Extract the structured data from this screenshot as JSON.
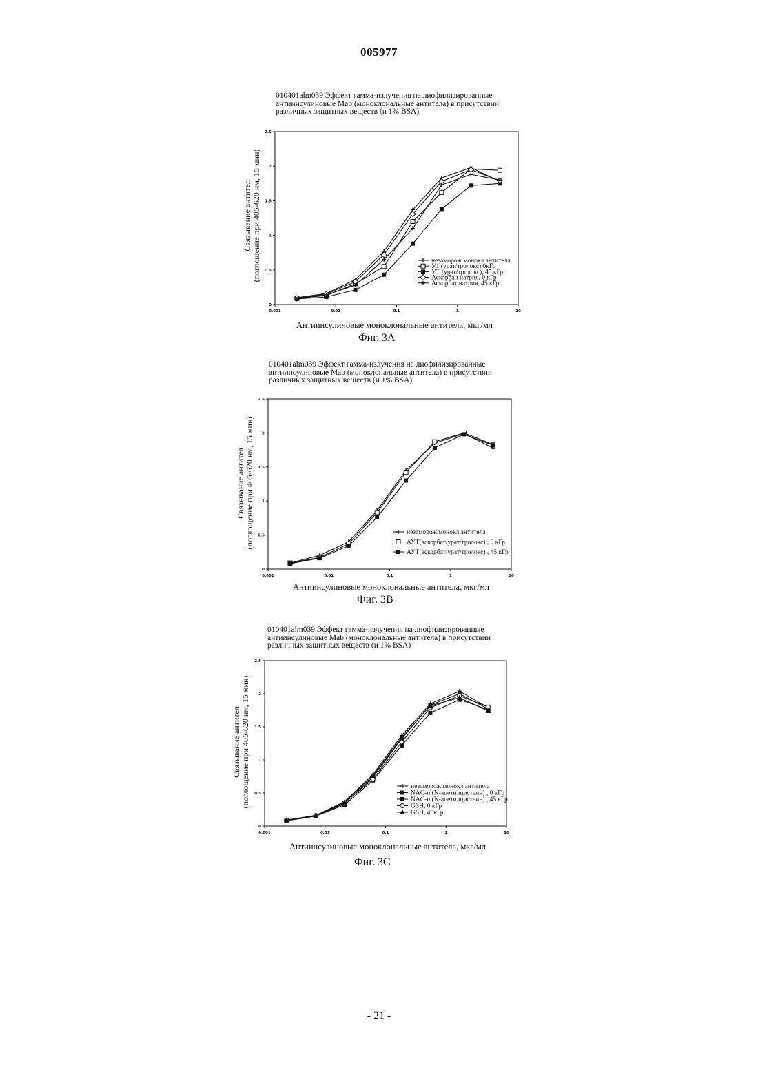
{
  "page": {
    "header_number": "005977",
    "footer_number": "- 21 -"
  },
  "chart_data": [
    {
      "type": "line",
      "title": "010401alm039 Эффект гамма-излучения на лиофилизированные\nантиинсулиновые Mab (моноклональные антитела) в присутствии\nразличных защитных веществ (и 1% BSA)",
      "xlabel": "Антиинсулиновые моноклональные антитела, мкг/мл",
      "ylabel": "Связывание антител\n(поглощение при 405-620 нм, 15 мин)",
      "caption": "Фиг. 3А",
      "xscale": "log",
      "xlim": [
        0.001,
        10
      ],
      "ylim": [
        0,
        2.5
      ],
      "x_ticks": [
        "0.001",
        "0.01",
        "0.1",
        "1",
        "10"
      ],
      "y_ticks": [
        "0",
        "0.5",
        "1",
        "1.5",
        "2",
        "2.5"
      ],
      "legend_position": "lower-right",
      "x": [
        0.0023,
        0.007,
        0.021,
        0.062,
        0.185,
        0.55,
        1.67,
        5.0
      ],
      "series": [
        {
          "name": "незаморож.монокл антитела",
          "marker": "plus",
          "values": [
            0.1,
            0.16,
            0.36,
            0.77,
            1.37,
            1.83,
            1.98,
            1.78
          ]
        },
        {
          "name": "У1 (урат/тролокс),0кГр",
          "marker": "square-open",
          "values": [
            0.09,
            0.13,
            0.3,
            0.55,
            1.2,
            1.62,
            1.96,
            1.94
          ]
        },
        {
          "name": "УТ (урат/тролокс), 45 кГр",
          "marker": "square-filled",
          "values": [
            0.08,
            0.11,
            0.21,
            0.43,
            0.88,
            1.38,
            1.72,
            1.75
          ]
        },
        {
          "name": "Аскорбан натрия, 0 кГр",
          "marker": "diamond-open",
          "values": [
            0.09,
            0.15,
            0.33,
            0.72,
            1.31,
            1.78,
            1.95,
            1.79
          ]
        },
        {
          "name": "Аскорбат натрия, 45 кГр",
          "marker": "plus",
          "values": [
            0.08,
            0.14,
            0.28,
            0.65,
            1.1,
            1.73,
            1.88,
            1.8
          ]
        }
      ]
    },
    {
      "type": "line",
      "title": "010401alm039 Эффект гамма-излучения на лиофилизированные\nантиинсулиновые Mab (моноклональные антитела) в присутствии\nразличных защитных веществ (и 1% BSA)",
      "xlabel": "Антиинсулиновые моноклональные антитела, мкг/мл",
      "ylabel": "Связывание антител\n(поглощение при 405-620 нм, 15 мин)",
      "caption": "Фиг. 3В",
      "xscale": "log",
      "xlim": [
        0.001,
        10
      ],
      "ylim": [
        0,
        2.5
      ],
      "x_ticks": [
        "0.001",
        "0.01",
        "0.1",
        "1",
        "10"
      ],
      "y_ticks": [
        "0",
        "0.5",
        "1",
        "1.5",
        "2",
        "2.5"
      ],
      "legend_position": "lower-right",
      "x": [
        0.0023,
        0.007,
        0.021,
        0.062,
        0.185,
        0.55,
        1.67,
        5.0
      ],
      "series": [
        {
          "name": "незаморож.монокл.антитела",
          "marker": "plus",
          "values": [
            0.09,
            0.2,
            0.4,
            0.86,
            1.45,
            1.85,
            1.99,
            1.78
          ]
        },
        {
          "name": "АУТ(аскорбат/урат/тролокс) , 0 кГр",
          "marker": "square-open",
          "values": [
            0.09,
            0.17,
            0.37,
            0.83,
            1.42,
            1.87,
            2.0,
            1.83
          ]
        },
        {
          "name": "АУТ(аскорбат/урат/тролокс) , 45 кГр",
          "marker": "square-filled",
          "values": [
            0.08,
            0.16,
            0.34,
            0.76,
            1.3,
            1.78,
            1.98,
            1.82
          ]
        }
      ]
    },
    {
      "type": "line",
      "title": "010401alm039 Эффект гамма-излучения на лиофилизированные\nантиинсулиновые Mab (моноклональные антитела) в присутствии\nразличных защитных веществ (и 1% BSA)",
      "xlabel": "Антиинсулиновые моноклональные антитела, мкг/мл",
      "ylabel": "Связывание антител\n(поглощение при 405-620 нм, 15 мин)",
      "caption": "Фиг. 3С",
      "xscale": "log",
      "xlim": [
        0.001,
        10
      ],
      "ylim": [
        0,
        2.5
      ],
      "x_ticks": [
        "0.001",
        "0.01",
        "0.1",
        "1",
        "10"
      ],
      "y_ticks": [
        "0",
        "0.5",
        "1",
        "1.5",
        "2",
        "2.5"
      ],
      "legend_position": "lower-right",
      "x": [
        0.0023,
        0.007,
        0.021,
        0.062,
        0.185,
        0.55,
        1.67,
        5.0
      ],
      "series": [
        {
          "name": "незаморож.монокл.антитела",
          "marker": "plus",
          "values": [
            0.09,
            0.16,
            0.37,
            0.78,
            1.37,
            1.85,
            2.04,
            1.79
          ]
        },
        {
          "name": "NAC-п (N-ацетилцистеин) , 0 кГр",
          "marker": "square-filled",
          "values": [
            0.09,
            0.15,
            0.34,
            0.74,
            1.32,
            1.83,
            2.0,
            1.77
          ]
        },
        {
          "name": "NAC-п (N-ацетилцистеин) , 45 кГр",
          "marker": "square-filled",
          "values": [
            0.08,
            0.15,
            0.32,
            0.69,
            1.22,
            1.71,
            1.91,
            1.76
          ]
        },
        {
          "name": "GSH, 0 кГр",
          "marker": "circle-open",
          "values": [
            0.09,
            0.16,
            0.35,
            0.71,
            1.27,
            1.79,
            1.97,
            1.8
          ]
        },
        {
          "name": "GSH, 45кГр",
          "marker": "triangle-filled",
          "values": [
            0.09,
            0.16,
            0.36,
            0.76,
            1.34,
            1.82,
            1.94,
            1.74
          ]
        }
      ]
    }
  ]
}
